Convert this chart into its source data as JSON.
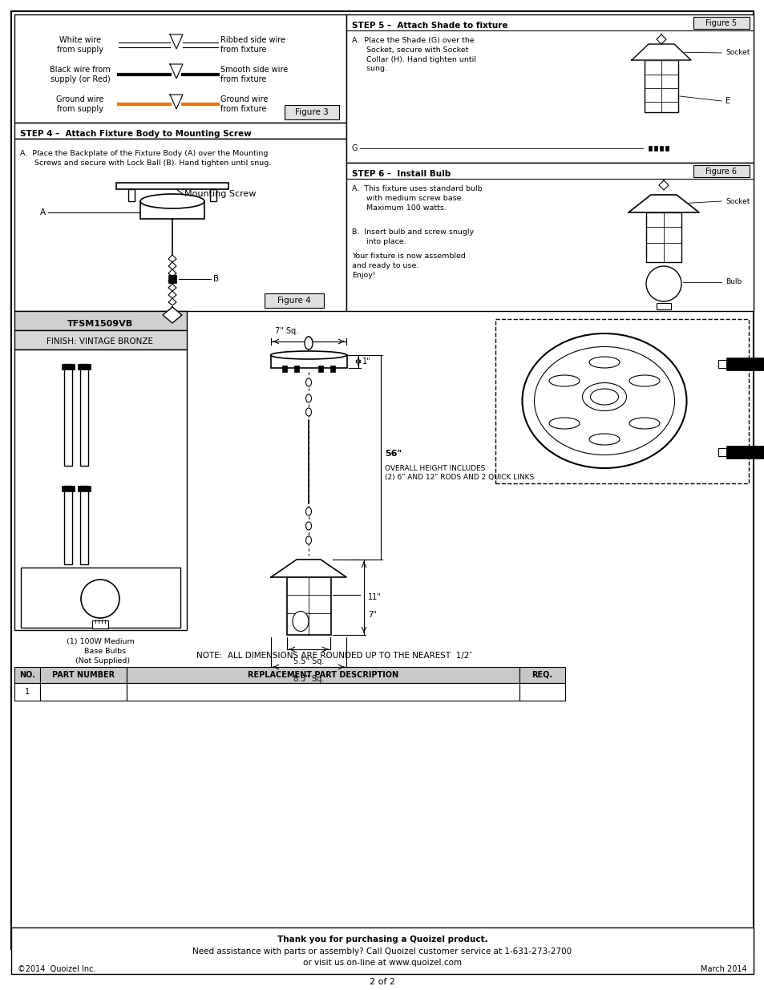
{
  "page_bg": "#ffffff",
  "page_width": 9.54,
  "page_height": 12.35,
  "footer_line1": "Thank you for purchasing a Quoizel product.",
  "footer_line2": "Need assistance with parts or assembly? Call Quoizel customer service at 1-631-273-2700",
  "footer_line3": "or visit us on-line at www.quoizel.com",
  "footer_left": "©2014  Quoizel Inc.",
  "footer_right": "March 2014",
  "footer_bottom": "2 of 2",
  "model": "TFSM1509VB",
  "finish": "FINISH: VINTAGE BRONZE",
  "step4_title": "STEP 4 –  Attach Fixture Body to Mounting Screw",
  "step4_textA": "A.  Place the Backplate of the Fixture Body (A) over the Mounting\n      Screws and secure with Lock Ball (B). Hand tighten until snug.",
  "step5_title": "STEP 5 –  Attach Shade to fixture",
  "step5_textA": "A.  Place the Shade (G) over the\n      Socket, secure with Socket\n      Collar (H). Hand tighten until\n      sung.",
  "step6_title": "STEP 6 –  Install Bulb",
  "step6_textA": "A.  This fixture uses standard bulb\n      with medium screw base.\n      Maximum 100 watts.",
  "step6_textB": "B.  Insert bulb and screw snugly\n      into place.",
  "step6_textC": "Your fixture is now assembled\nand ready to use.\nEnjoy!",
  "note_text": "NOTE:  ALL DIMENSIONS ARE ROUNDED UP TO THE NEAREST  1/2″",
  "bulb_label": "(1) 100W Medium\n    Base Bulbs\n  (Not Supplied)",
  "dim_7sq": "7\" Sq.",
  "dim_1": "1\"",
  "dim_56": "56\"",
  "dim_56_sub": "OVERALL HEIGHT INCLUDES\n(2) 6\" AND 12\" RODS AND 2 QUICK LINKS",
  "dim_11": "11\"",
  "dim_7": "7\"",
  "dim_55sq": "5.5\" Sq.",
  "dim_85sq": "8.5\" Sq.",
  "mounting_screw_label": "Mounting Screw",
  "table_headers": [
    "NO.",
    "PART NUMBER",
    "REPLACEMENT PART DESCRIPTION",
    "REQ."
  ],
  "table_row": [
    "1",
    "",
    "",
    ""
  ],
  "orange_wire": "#e07818"
}
